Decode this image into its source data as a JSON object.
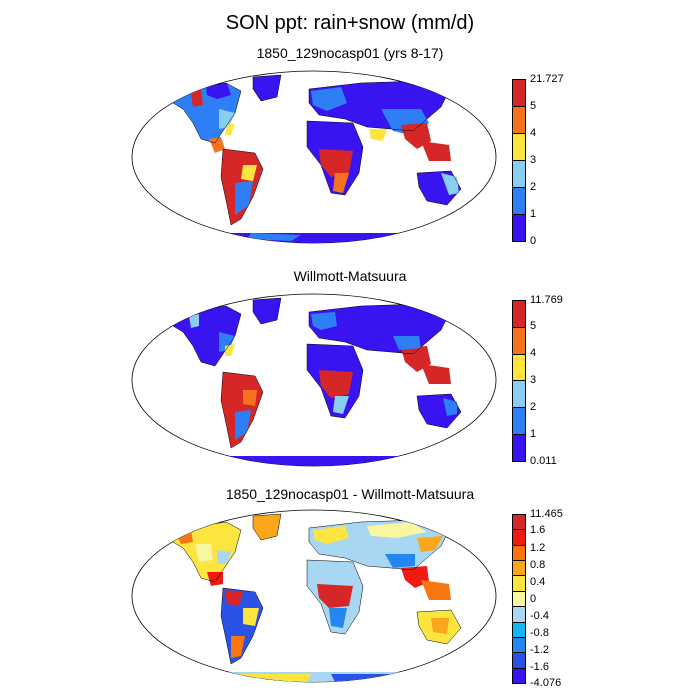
{
  "title": "SON ppt: rain+snow (mm/d)",
  "panels": [
    {
      "title": "1850_129nocasp01 (yrs 8-17)",
      "colorbar": {
        "labels": [
          "21.727",
          "5",
          "4",
          "3",
          "2",
          "1",
          "0"
        ],
        "colors": [
          "#d62728",
          "#f5731e",
          "#fde540",
          "#89cdf2",
          "#2e7ff5",
          "#3a14f0"
        ]
      }
    },
    {
      "title": "Willmott-Matsuura",
      "colorbar": {
        "labels": [
          "11.769",
          "5",
          "4",
          "3",
          "2",
          "1",
          "0.011"
        ],
        "colors": [
          "#d62728",
          "#f5731e",
          "#fde540",
          "#89cdf2",
          "#2e7ff5",
          "#3a14f0"
        ]
      }
    },
    {
      "title": "1850_129nocasp01 - Willmott-Matsuura",
      "colorbar": {
        "labels": [
          "11.465",
          "1.6",
          "1.2",
          "0.8",
          "0.4",
          "0",
          "-0.4",
          "-0.8",
          "-1.2",
          "-1.6",
          "-4.076"
        ],
        "colors": [
          "#d62728",
          "#ef1b12",
          "#f8750f",
          "#fba61b",
          "#fde540",
          "#f8f7a0",
          "#a8d7f4",
          "#15b5f1",
          "#2586ef",
          "#2a52e6",
          "#3a14f0"
        ]
      }
    }
  ]
}
